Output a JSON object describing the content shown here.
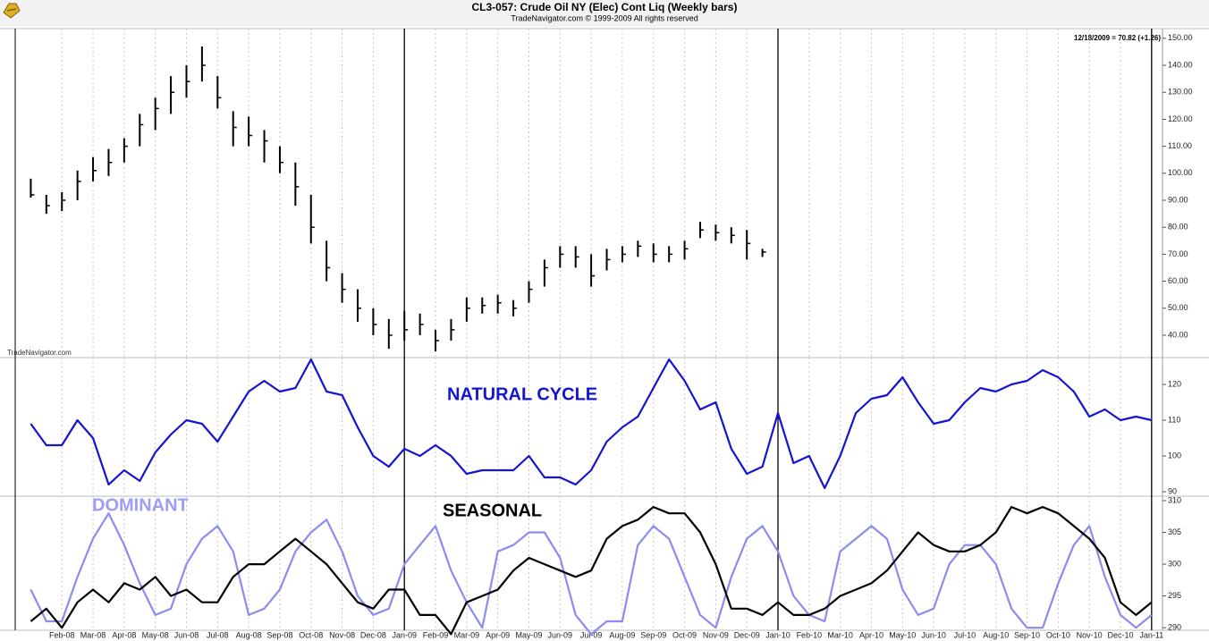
{
  "x_axis": {
    "xlim": [
      -0.5,
      36.35
    ],
    "xticks": [
      {
        "value": 1,
        "label": "Feb-08"
      },
      {
        "value": 2,
        "label": "Mar-08"
      },
      {
        "value": 3,
        "label": "Apr-08"
      },
      {
        "value": 4,
        "label": "May-08"
      },
      {
        "value": 5,
        "label": "Jun-08"
      },
      {
        "value": 6,
        "label": "Jul-08"
      },
      {
        "value": 7,
        "label": "Aug-08"
      },
      {
        "value": 8,
        "label": "Sep-08"
      },
      {
        "value": 9,
        "label": "Oct-08"
      },
      {
        "value": 10,
        "label": "Nov-08"
      },
      {
        "value": 11,
        "label": "Dec-08"
      },
      {
        "value": 12,
        "label": "Jan-09"
      },
      {
        "value": 13,
        "label": "Feb-09"
      },
      {
        "value": 14,
        "label": "Mar-09"
      },
      {
        "value": 15,
        "label": "Apr-09"
      },
      {
        "value": 16,
        "label": "May-09"
      },
      {
        "value": 17,
        "label": "Jun-09"
      },
      {
        "value": 18,
        "label": "Jul-09"
      },
      {
        "value": 19,
        "label": "Aug-09"
      },
      {
        "value": 20,
        "label": "Sep-09"
      },
      {
        "value": 21,
        "label": "Oct-09"
      },
      {
        "value": 22,
        "label": "Nov-09"
      },
      {
        "value": 23,
        "label": "Dec-09"
      },
      {
        "value": 24,
        "label": "Jan-10"
      },
      {
        "value": 25,
        "label": "Feb-10"
      },
      {
        "value": 26,
        "label": "Mar-10"
      },
      {
        "value": 27,
        "label": "Apr-10"
      },
      {
        "value": 28,
        "label": "May-10"
      },
      {
        "value": 29,
        "label": "Jun-10"
      },
      {
        "value": 30,
        "label": "Jul-10"
      },
      {
        "value": 31,
        "label": "Aug-10"
      },
      {
        "value": 32,
        "label": "Sep-10"
      },
      {
        "value": 33,
        "label": "Oct-10"
      },
      {
        "value": 34,
        "label": "Nov-10"
      },
      {
        "value": 35,
        "label": "Dec-10"
      },
      {
        "value": 36,
        "label": "Jan-11"
      }
    ],
    "year_lines": [
      12,
      24,
      36
    ]
  },
  "chart_data": [
    {
      "type": "ohlc",
      "title": "CL3-057:  Crude Oil NY (Elec) Cont Liq  (Weekly bars)",
      "subtitle": "TradeNavigator.com © 1999-2009 All rights reserved",
      "annotations": [
        "12/18/2009 = 70.82 (+1.26)",
        "TradeNavigator.com"
      ],
      "color": "#000000",
      "x": [
        0,
        0.5,
        1,
        1.5,
        2,
        2.5,
        3,
        3.5,
        4,
        4.5,
        5,
        5.5,
        6,
        6.5,
        7,
        7.5,
        8,
        8.5,
        9,
        9.5,
        10,
        10.5,
        11,
        11.5,
        12,
        12.5,
        13,
        13.5,
        14,
        14.5,
        15,
        15.5,
        16,
        16.5,
        17,
        17.5,
        18,
        18.5,
        19,
        19.5,
        20,
        20.5,
        21,
        21.5,
        22,
        22.5,
        23,
        23.5
      ],
      "high": [
        98,
        92,
        93,
        101,
        106,
        109,
        113,
        122,
        128,
        136,
        140,
        147,
        136,
        123,
        121,
        116,
        110,
        104,
        92,
        75,
        63,
        57,
        50,
        46,
        49,
        48,
        42,
        46,
        54,
        54,
        55,
        53,
        60,
        68,
        73,
        73,
        70,
        72,
        73,
        75,
        74,
        73,
        75,
        82,
        81,
        80,
        79,
        72
      ],
      "low": [
        91,
        85,
        86,
        90,
        97,
        99,
        104,
        110,
        116,
        122,
        128,
        134,
        124,
        110,
        110,
        104,
        100,
        88,
        74,
        60,
        52,
        45,
        40,
        35,
        38,
        40,
        34,
        38,
        45,
        48,
        48,
        47,
        52,
        58,
        65,
        65,
        58,
        64,
        67,
        69,
        67,
        67,
        68,
        76,
        75,
        74,
        68,
        69
      ],
      "close": [
        92,
        88,
        90,
        97,
        101,
        104,
        110,
        118,
        124,
        130,
        134,
        140,
        128,
        117,
        114,
        112,
        104,
        95,
        80,
        65,
        57,
        50,
        44,
        40,
        42,
        44,
        38,
        42,
        50,
        51,
        52,
        50,
        57,
        65,
        70,
        69,
        62,
        68,
        70,
        73,
        70,
        70,
        72,
        79,
        78,
        77,
        74,
        70.82
      ],
      "ylim": [
        31.7,
        153.6
      ],
      "yticks": [
        {
          "value": 40,
          "label": "40.00"
        },
        {
          "value": 50,
          "label": "50.00"
        },
        {
          "value": 60,
          "label": "60.00"
        },
        {
          "value": 70,
          "label": "70.00"
        },
        {
          "value": 80,
          "label": "80.00"
        },
        {
          "value": 90,
          "label": "90.00"
        },
        {
          "value": 100,
          "label": "100.00"
        },
        {
          "value": 110,
          "label": "110.00"
        },
        {
          "value": 120,
          "label": "120.00"
        },
        {
          "value": 130,
          "label": "130.00"
        },
        {
          "value": 140,
          "label": "140.00"
        },
        {
          "value": 150,
          "label": "150.00"
        }
      ]
    },
    {
      "type": "line",
      "x": [
        0,
        0.5,
        1,
        1.5,
        2,
        2.5,
        3,
        3.5,
        4,
        4.5,
        5,
        5.5,
        6,
        6.5,
        7,
        7.5,
        8,
        8.5,
        9,
        9.5,
        10,
        10.5,
        11,
        11.5,
        12,
        12.5,
        13,
        13.5,
        14,
        14.5,
        15,
        15.5,
        16,
        16.5,
        17,
        17.5,
        18,
        18.5,
        19,
        19.5,
        20,
        20.5,
        21,
        21.5,
        22,
        22.5,
        23,
        23.5,
        24,
        24.5,
        25,
        25.5,
        26,
        26.5,
        27,
        27.5,
        28,
        28.5,
        29,
        29.5,
        30,
        30.5,
        31,
        31.5,
        32,
        32.5,
        33,
        33.5,
        34,
        34.5,
        35,
        35.5,
        36
      ],
      "series": [
        {
          "name": "NATURAL CYCLE",
          "color": "#1414d2",
          "values": [
            109,
            103,
            103,
            110,
            105,
            92,
            96,
            93,
            101,
            106,
            110,
            109,
            104,
            111,
            118,
            121,
            118,
            119,
            127,
            118,
            117,
            108,
            100,
            97,
            102,
            100,
            103,
            100,
            95,
            96,
            96,
            96,
            100,
            94,
            94,
            92,
            96,
            104,
            108,
            111,
            119,
            127,
            121,
            113,
            115,
            102,
            95,
            97,
            112,
            98,
            100,
            91,
            100,
            112,
            116,
            117,
            122,
            115,
            109,
            110,
            115,
            119,
            118,
            120,
            121,
            124,
            122,
            118,
            111,
            113,
            110,
            111,
            110
          ]
        }
      ],
      "ylim": [
        88.75,
        127.5
      ],
      "yticks": [
        90,
        100,
        110,
        120
      ]
    },
    {
      "type": "line",
      "x": [
        0,
        0.5,
        1,
        1.5,
        2,
        2.5,
        3,
        3.5,
        4,
        4.5,
        5,
        5.5,
        6,
        6.5,
        7,
        7.5,
        8,
        8.5,
        9,
        9.5,
        10,
        10.5,
        11,
        11.5,
        12,
        12.5,
        13,
        13.5,
        14,
        14.5,
        15,
        15.5,
        16,
        16.5,
        17,
        17.5,
        18,
        18.5,
        19,
        19.5,
        20,
        20.5,
        21,
        21.5,
        22,
        22.5,
        23,
        23.5,
        24,
        24.5,
        25,
        25.5,
        26,
        26.5,
        27,
        27.5,
        28,
        28.5,
        29,
        29.5,
        30,
        30.5,
        31,
        31.5,
        32,
        32.5,
        33,
        33.5,
        34,
        34.5,
        35,
        35.5,
        36
      ],
      "series": [
        {
          "name": "DOMINANT",
          "color": "#8c8cf0",
          "values": [
            296,
            291,
            291,
            298,
            304,
            308,
            303,
            297,
            292,
            293,
            300,
            304,
            306,
            302,
            292,
            293,
            296,
            302,
            305,
            307,
            302,
            295,
            292,
            293,
            300,
            303,
            306,
            299,
            294,
            290,
            302,
            303,
            305,
            305,
            301,
            292,
            289,
            291,
            291,
            303,
            306,
            304,
            298,
            292,
            290,
            298,
            304,
            306,
            302,
            295,
            292,
            291,
            302,
            304,
            306,
            304,
            296,
            292,
            293,
            300,
            303,
            303,
            300,
            293,
            290,
            290,
            297,
            303,
            306,
            298,
            292,
            290,
            292
          ]
        },
        {
          "name": "SEASONAL",
          "color": "#000000",
          "values": [
            291,
            293,
            290,
            294,
            296,
            294,
            297,
            296,
            298,
            295,
            296,
            294,
            294,
            298,
            300,
            300,
            302,
            304,
            302,
            300,
            297,
            294,
            293,
            296,
            296,
            292,
            292,
            289,
            294,
            295,
            296,
            299,
            301,
            300,
            299,
            298,
            299,
            304,
            306,
            307,
            309,
            308,
            308,
            305,
            300,
            293,
            293,
            292,
            294,
            292,
            292,
            293,
            295,
            296,
            297,
            299,
            302,
            305,
            303,
            302,
            302,
            303,
            305,
            309,
            308,
            309,
            308,
            306,
            304,
            301,
            294,
            292,
            294
          ]
        }
      ],
      "ylim": [
        289.6,
        310.7
      ],
      "yticks": [
        290,
        295,
        300,
        305,
        310
      ]
    }
  ]
}
